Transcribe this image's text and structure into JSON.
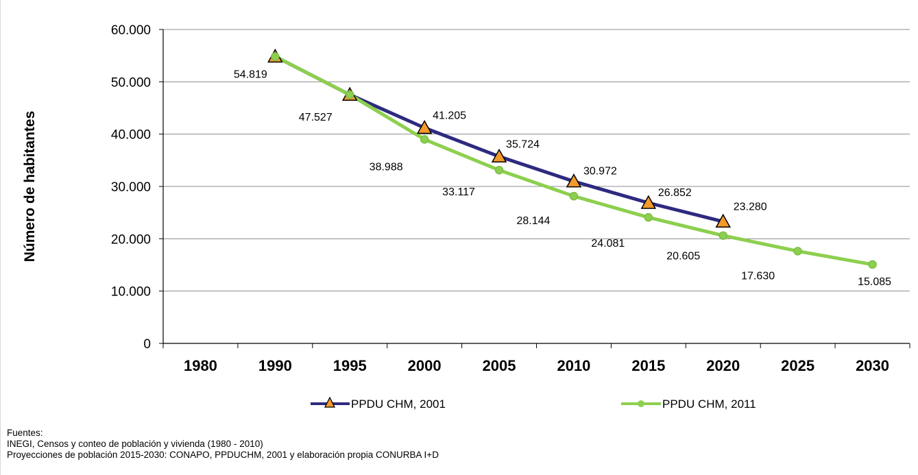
{
  "colors": {
    "series_2001": "#2e2a7f",
    "series_2011": "#8dcf4f",
    "marker_2001": "#f39a2b",
    "marker_2011_fill": "#8dcf4f",
    "grid": "#8c8c8c"
  },
  "chart_data": {
    "type": "line",
    "ylabel": "Número de habitantes",
    "xlabel": "",
    "ylim": [
      0,
      60000
    ],
    "y_ticks": [
      "0",
      "10.000",
      "20.000",
      "30.000",
      "40.000",
      "50.000",
      "60.000"
    ],
    "categories": [
      "1980",
      "1990",
      "1995",
      "2000",
      "2005",
      "2010",
      "2015",
      "2020",
      "2025",
      "2030"
    ],
    "grid": "horizontal",
    "legend_position": "bottom",
    "series": [
      {
        "name": "PPDU CHM, 2001",
        "marker": "triangle",
        "values": [
          null,
          54819,
          47527,
          41205,
          35724,
          30972,
          26852,
          23280,
          null,
          null
        ],
        "labels": [
          null,
          "54.819",
          "47.527",
          "41.205",
          "35.724",
          "30.972",
          "26.852",
          "23.280",
          null,
          null
        ]
      },
      {
        "name": "PPDU CHM, 2011",
        "marker": "circle",
        "values": [
          null,
          54819,
          47527,
          38988,
          33117,
          28144,
          24081,
          20605,
          17630,
          15085
        ],
        "labels": [
          null,
          null,
          null,
          "38.988",
          "33.117",
          "28.144",
          "24.081",
          "20.605",
          "17.630",
          "15.085"
        ]
      }
    ]
  },
  "sources": {
    "heading": "Fuentes:",
    "line1": "INEGI, Censos y conteo de población y vivienda (1980 - 2010)",
    "line2": "Proyecciones de población  2015-2030: CONAPO, PPDUCHM, 2001 y elaboración propia CONURBA I+D"
  }
}
